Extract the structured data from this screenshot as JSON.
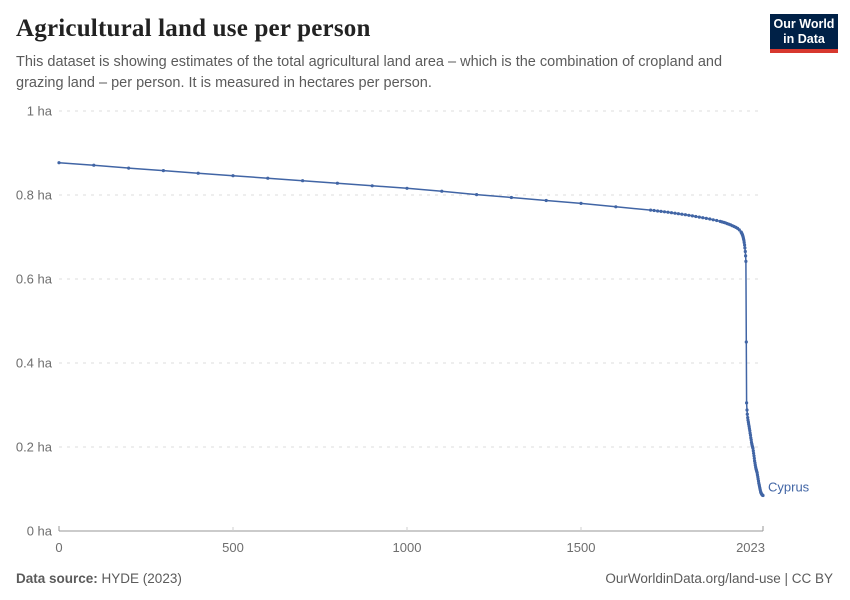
{
  "header": {
    "title": "Agricultural land use per person",
    "subtitle": "This dataset is showing estimates of the total agricultural land area – which is the combination of cropland and grazing land – per person. It is measured in hectares per person."
  },
  "logo": {
    "line1": "Our World",
    "line2": "in Data",
    "bg_color": "#002147",
    "accent_color": "#d7382e"
  },
  "chart_data": {
    "type": "line",
    "title": "Agricultural land use per person",
    "unit": "hectares per person",
    "xlim": [
      0,
      2023
    ],
    "ylim": [
      0,
      1
    ],
    "x_ticks": [
      0,
      500,
      1000,
      1500,
      2023
    ],
    "x_tick_labels": [
      "0",
      "500",
      "1000",
      "1500",
      "2023"
    ],
    "y_ticks": [
      0,
      0.2,
      0.4,
      0.6,
      0.8,
      1
    ],
    "y_tick_labels": [
      "0 ha",
      "0.2 ha",
      "0.4 ha",
      "0.6 ha",
      "0.8 ha",
      "1 ha"
    ],
    "grid": true,
    "gridline_color": "#dcdcdc",
    "axis_color": "#979797",
    "tick_label_color": "#6e6e6e",
    "legend_position": "end-of-line-label",
    "series": [
      {
        "name": "Cyprus",
        "color": "#4165a5",
        "points": [
          [
            0,
            0.877
          ],
          [
            100,
            0.871
          ],
          [
            200,
            0.864
          ],
          [
            300,
            0.858
          ],
          [
            400,
            0.852
          ],
          [
            500,
            0.846
          ],
          [
            600,
            0.84
          ],
          [
            700,
            0.834
          ],
          [
            800,
            0.828
          ],
          [
            900,
            0.822
          ],
          [
            1000,
            0.816
          ],
          [
            1100,
            0.809
          ],
          [
            1200,
            0.801
          ],
          [
            1300,
            0.794
          ],
          [
            1400,
            0.787
          ],
          [
            1500,
            0.78
          ],
          [
            1600,
            0.772
          ],
          [
            1700,
            0.764
          ],
          [
            1710,
            0.763
          ],
          [
            1720,
            0.762
          ],
          [
            1730,
            0.761
          ],
          [
            1740,
            0.76
          ],
          [
            1750,
            0.759
          ],
          [
            1760,
            0.7578
          ],
          [
            1770,
            0.7566
          ],
          [
            1780,
            0.7554
          ],
          [
            1790,
            0.7542
          ],
          [
            1800,
            0.753
          ],
          [
            1810,
            0.7516
          ],
          [
            1820,
            0.7502
          ],
          [
            1830,
            0.7488
          ],
          [
            1840,
            0.7474
          ],
          [
            1850,
            0.746
          ],
          [
            1860,
            0.7444
          ],
          [
            1870,
            0.7428
          ],
          [
            1880,
            0.741
          ],
          [
            1890,
            0.7392
          ],
          [
            1900,
            0.7372
          ],
          [
            1905,
            0.736
          ],
          [
            1910,
            0.7348
          ],
          [
            1915,
            0.7335
          ],
          [
            1920,
            0.732
          ],
          [
            1925,
            0.7305
          ],
          [
            1930,
            0.7288
          ],
          [
            1935,
            0.727
          ],
          [
            1940,
            0.725
          ],
          [
            1945,
            0.7228
          ],
          [
            1950,
            0.7205
          ],
          [
            1955,
            0.717
          ],
          [
            1960,
            0.712
          ],
          [
            1961,
            0.7105
          ],
          [
            1962,
            0.7088
          ],
          [
            1963,
            0.707
          ],
          [
            1964,
            0.705
          ],
          [
            1965,
            0.7025
          ],
          [
            1966,
            0.6995
          ],
          [
            1967,
            0.696
          ],
          [
            1968,
            0.692
          ],
          [
            1969,
            0.687
          ],
          [
            1970,
            0.681
          ],
          [
            1971,
            0.674
          ],
          [
            1972,
            0.6655
          ],
          [
            1973,
            0.655
          ],
          [
            1974,
            0.642
          ],
          [
            1975,
            0.45
          ],
          [
            1976,
            0.305
          ],
          [
            1977,
            0.288
          ],
          [
            1978,
            0.278
          ],
          [
            1979,
            0.27
          ],
          [
            1980,
            0.264
          ],
          [
            1981,
            0.259
          ],
          [
            1982,
            0.254
          ],
          [
            1983,
            0.249
          ],
          [
            1984,
            0.244
          ],
          [
            1985,
            0.239
          ],
          [
            1986,
            0.233
          ],
          [
            1987,
            0.228
          ],
          [
            1988,
            0.222
          ],
          [
            1989,
            0.217
          ],
          [
            1990,
            0.211
          ],
          [
            1991,
            0.207
          ],
          [
            1992,
            0.203
          ],
          [
            1993,
            0.2
          ],
          [
            1994,
            0.197
          ],
          [
            1995,
            0.191
          ],
          [
            1996,
            0.185
          ],
          [
            1997,
            0.179
          ],
          [
            1998,
            0.173
          ],
          [
            1999,
            0.167
          ],
          [
            2000,
            0.162
          ],
          [
            2001,
            0.157
          ],
          [
            2002,
            0.152
          ],
          [
            2003,
            0.148
          ],
          [
            2004,
            0.145
          ],
          [
            2005,
            0.142
          ],
          [
            2006,
            0.139
          ],
          [
            2007,
            0.134
          ],
          [
            2008,
            0.129
          ],
          [
            2009,
            0.124
          ],
          [
            2010,
            0.119
          ],
          [
            2011,
            0.114
          ],
          [
            2012,
            0.11
          ],
          [
            2013,
            0.106
          ],
          [
            2014,
            0.102
          ],
          [
            2015,
            0.098
          ],
          [
            2016,
            0.094
          ],
          [
            2017,
            0.0915
          ],
          [
            2018,
            0.0895
          ],
          [
            2019,
            0.088
          ],
          [
            2020,
            0.0868
          ],
          [
            2021,
            0.0858
          ],
          [
            2022,
            0.085
          ],
          [
            2023,
            0.0845
          ]
        ]
      }
    ]
  },
  "footer": {
    "source_label": "Data source:",
    "source_value": "HYDE (2023)",
    "credit": "OurWorldinData.org/land-use | CC BY"
  }
}
